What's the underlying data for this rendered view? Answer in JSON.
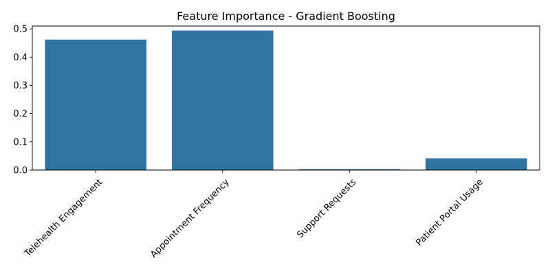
{
  "chart_data": {
    "type": "bar",
    "title": "Feature Importance - Gradient Boosting",
    "xlabel": "",
    "ylabel": "",
    "categories": [
      "Telehealth Engagement",
      "Appointment Frequency",
      "Support Requests",
      "Patient Portal Usage"
    ],
    "values": [
      0.462,
      0.494,
      0.003,
      0.041
    ],
    "ylim": [
      0,
      0.51
    ],
    "yticks": [
      0.0,
      0.1,
      0.2,
      0.3,
      0.4,
      0.5
    ],
    "ytick_labels": [
      "0.0",
      "0.1",
      "0.2",
      "0.3",
      "0.4",
      "0.5"
    ],
    "grid": false,
    "legend": "none",
    "bar_color": "#3274a1",
    "xtick_rotation_deg": 45
  }
}
